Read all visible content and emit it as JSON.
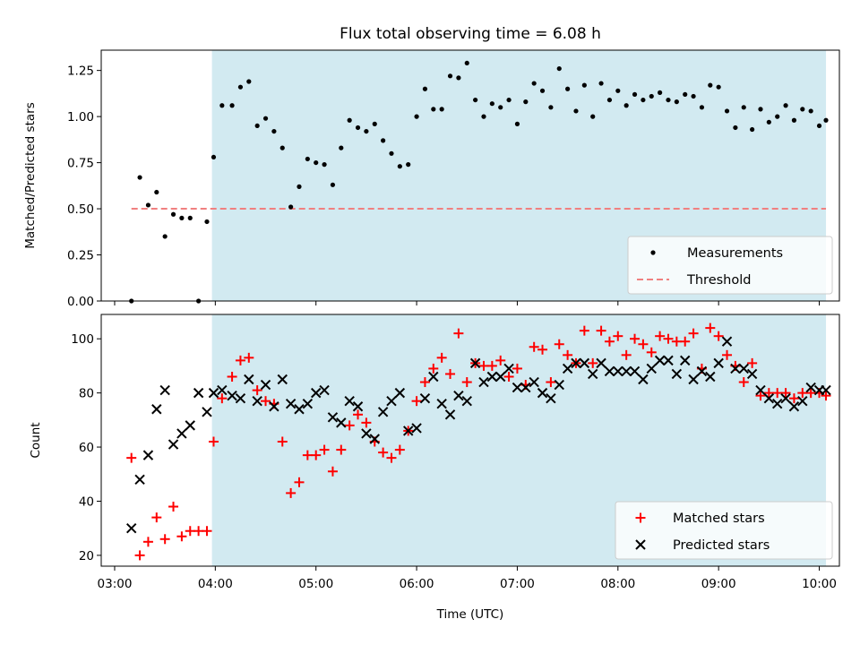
{
  "colors": {
    "shade": "#add8e6",
    "matched": "#ff0000",
    "predicted": "#000000",
    "measurements": "#000000",
    "threshold": "#f08080"
  },
  "chart_data": [
    {
      "type": "scatter",
      "title": "Flux total observing time = 6.08 h",
      "ylabel": "Matched/Predicted stars",
      "ylim": [
        0,
        1.36
      ],
      "yticks": [
        "0.00",
        "0.25",
        "0.50",
        "0.75",
        "1.00",
        "1.25"
      ],
      "ytick_values": [
        0,
        0.25,
        0.5,
        0.75,
        1.0,
        1.25
      ],
      "xlim": [
        "02:52",
        "10:12"
      ],
      "shaded_span": [
        "03:58",
        "10:04"
      ],
      "legend": {
        "placement": "lower right",
        "entries": [
          "Measurements",
          "Threshold"
        ]
      },
      "threshold": {
        "name": "Threshold",
        "y": 0.5,
        "x_range": [
          "03:10",
          "10:04"
        ]
      },
      "series": [
        {
          "name": "Measurements",
          "marker": "dot",
          "x": [
            "03:10",
            "03:15",
            "03:20",
            "03:25",
            "03:30",
            "03:35",
            "03:40",
            "03:45",
            "03:50",
            "03:55",
            "03:59",
            "04:04",
            "04:10",
            "04:15",
            "04:20",
            "04:25",
            "04:30",
            "04:35",
            "04:40",
            "04:45",
            "04:50",
            "04:55",
            "05:00",
            "05:05",
            "05:10",
            "05:15",
            "05:20",
            "05:25",
            "05:30",
            "05:35",
            "05:40",
            "05:45",
            "05:50",
            "05:55",
            "06:00",
            "06:05",
            "06:10",
            "06:15",
            "06:20",
            "06:25",
            "06:30",
            "06:35",
            "06:40",
            "06:45",
            "06:50",
            "06:55",
            "07:00",
            "07:05",
            "07:10",
            "07:15",
            "07:20",
            "07:25",
            "07:30",
            "07:35",
            "07:40",
            "07:45",
            "07:50",
            "07:55",
            "08:00",
            "08:05",
            "08:10",
            "08:15",
            "08:20",
            "08:25",
            "08:30",
            "08:35",
            "08:40",
            "08:45",
            "08:50",
            "08:55",
            "09:00",
            "09:05",
            "09:10",
            "09:15",
            "09:20",
            "09:25",
            "09:30",
            "09:35",
            "09:40",
            "09:45",
            "09:50",
            "09:55",
            "10:00",
            "10:04"
          ],
          "y": [
            0.0,
            0.67,
            0.52,
            0.59,
            0.35,
            0.47,
            0.45,
            0.45,
            0.0,
            0.43,
            0.78,
            1.06,
            1.06,
            1.16,
            1.19,
            0.95,
            0.99,
            0.92,
            0.83,
            0.51,
            0.62,
            0.77,
            0.75,
            0.74,
            0.63,
            0.83,
            0.98,
            0.94,
            0.92,
            0.96,
            0.87,
            0.8,
            0.73,
            0.74,
            1.0,
            1.15,
            1.04,
            1.04,
            1.22,
            1.21,
            1.29,
            1.09,
            1.0,
            1.07,
            1.05,
            1.09,
            0.96,
            1.08,
            1.18,
            1.14,
            1.05,
            1.26,
            1.15,
            1.03,
            1.17,
            1.0,
            1.18,
            1.09,
            1.14,
            1.06,
            1.12,
            1.09,
            1.11,
            1.13,
            1.09,
            1.08,
            1.12,
            1.11,
            1.05,
            1.17,
            1.16,
            1.03,
            0.94,
            1.05,
            0.93,
            1.04,
            0.97,
            1.0,
            1.06,
            0.98,
            1.04,
            1.03,
            0.95,
            0.98
          ]
        }
      ]
    },
    {
      "type": "scatter",
      "xlabel": "Time (UTC)",
      "ylabel": "Count",
      "ylim": [
        16,
        109
      ],
      "yticks": [
        "20",
        "40",
        "60",
        "80",
        "100"
      ],
      "ytick_values": [
        20,
        40,
        60,
        80,
        100
      ],
      "xlim": [
        "02:52",
        "10:12"
      ],
      "xticks": [
        "03:00",
        "04:00",
        "05:00",
        "06:00",
        "07:00",
        "08:00",
        "09:00",
        "10:00"
      ],
      "shaded_span": [
        "03:58",
        "10:04"
      ],
      "legend": {
        "placement": "lower right",
        "entries": [
          "Matched stars",
          "Predicted stars"
        ]
      },
      "series": [
        {
          "name": "Matched stars",
          "marker": "plus",
          "x": [
            "03:10",
            "03:15",
            "03:20",
            "03:25",
            "03:30",
            "03:35",
            "03:40",
            "03:45",
            "03:50",
            "03:55",
            "03:59",
            "04:04",
            "04:10",
            "04:15",
            "04:20",
            "04:25",
            "04:30",
            "04:35",
            "04:40",
            "04:45",
            "04:50",
            "04:55",
            "05:00",
            "05:05",
            "05:10",
            "05:15",
            "05:20",
            "05:25",
            "05:30",
            "05:35",
            "05:40",
            "05:45",
            "05:50",
            "05:55",
            "06:00",
            "06:05",
            "06:10",
            "06:15",
            "06:20",
            "06:25",
            "06:30",
            "06:35",
            "06:40",
            "06:45",
            "06:50",
            "06:55",
            "07:00",
            "07:05",
            "07:10",
            "07:15",
            "07:20",
            "07:25",
            "07:30",
            "07:35",
            "07:40",
            "07:45",
            "07:50",
            "07:55",
            "08:00",
            "08:05",
            "08:10",
            "08:15",
            "08:20",
            "08:25",
            "08:30",
            "08:35",
            "08:40",
            "08:45",
            "08:50",
            "08:55",
            "09:00",
            "09:05",
            "09:10",
            "09:15",
            "09:20",
            "09:25",
            "09:30",
            "09:35",
            "09:40",
            "09:45",
            "09:50",
            "09:55",
            "10:00",
            "10:04"
          ],
          "y": [
            56,
            20,
            25,
            34,
            26,
            38,
            27,
            29,
            29,
            29,
            62,
            78,
            86,
            92,
            93,
            81,
            77,
            76,
            62,
            43,
            47,
            57,
            57,
            59,
            51,
            59,
            68,
            72,
            69,
            62,
            58,
            56,
            59,
            66,
            77,
            84,
            89,
            93,
            87,
            102,
            84,
            91,
            90,
            90,
            92,
            86,
            89,
            83,
            97,
            96,
            84,
            98,
            94,
            91,
            103,
            91,
            103,
            99,
            101,
            94,
            100,
            98,
            95,
            101,
            100,
            99,
            99,
            102,
            89,
            104,
            101,
            94,
            90,
            84,
            91,
            79,
            80,
            80,
            80,
            78,
            80,
            80,
            80,
            79
          ]
        },
        {
          "name": "Predicted stars",
          "marker": "x",
          "x": [
            "03:10",
            "03:15",
            "03:20",
            "03:25",
            "03:30",
            "03:35",
            "03:40",
            "03:45",
            "03:50",
            "03:55",
            "03:59",
            "04:04",
            "04:10",
            "04:15",
            "04:20",
            "04:25",
            "04:30",
            "04:35",
            "04:40",
            "04:45",
            "04:50",
            "04:55",
            "05:00",
            "05:05",
            "05:10",
            "05:15",
            "05:20",
            "05:25",
            "05:30",
            "05:35",
            "05:40",
            "05:45",
            "05:50",
            "05:55",
            "06:00",
            "06:05",
            "06:10",
            "06:15",
            "06:20",
            "06:25",
            "06:30",
            "06:35",
            "06:40",
            "06:45",
            "06:50",
            "06:55",
            "07:00",
            "07:05",
            "07:10",
            "07:15",
            "07:20",
            "07:25",
            "07:30",
            "07:35",
            "07:40",
            "07:45",
            "07:50",
            "07:55",
            "08:00",
            "08:05",
            "08:10",
            "08:15",
            "08:20",
            "08:25",
            "08:30",
            "08:35",
            "08:40",
            "08:45",
            "08:50",
            "08:55",
            "09:00",
            "09:05",
            "09:10",
            "09:15",
            "09:20",
            "09:25",
            "09:30",
            "09:35",
            "09:40",
            "09:45",
            "09:50",
            "09:55",
            "10:00",
            "10:04"
          ],
          "y": [
            30,
            48,
            57,
            74,
            81,
            61,
            65,
            68,
            80,
            73,
            80,
            81,
            79,
            78,
            85,
            77,
            83,
            75,
            85,
            76,
            74,
            76,
            80,
            81,
            71,
            69,
            77,
            75,
            65,
            63,
            73,
            77,
            80,
            66,
            67,
            78,
            86,
            76,
            72,
            79,
            77,
            91,
            84,
            86,
            86,
            89,
            82,
            82,
            84,
            80,
            78,
            83,
            89,
            91,
            91,
            87,
            91,
            88,
            88,
            88,
            88,
            85,
            89,
            92,
            92,
            87,
            92,
            85,
            88,
            86,
            91,
            99,
            89,
            89,
            87,
            81,
            78,
            76,
            78,
            75,
            77,
            82,
            81,
            81
          ]
        }
      ]
    }
  ]
}
